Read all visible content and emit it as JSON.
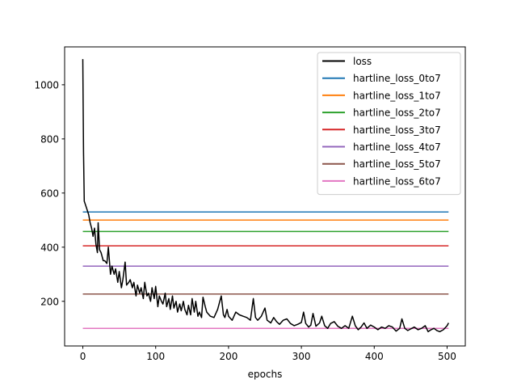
{
  "chart_data": {
    "type": "line",
    "title": "",
    "xlabel": "epochs",
    "ylabel": "",
    "xlim": [
      -25,
      525
    ],
    "ylim": [
      35,
      1140
    ],
    "xticks": [
      0,
      100,
      200,
      300,
      400,
      500
    ],
    "yticks": [
      200,
      400,
      600,
      800,
      1000
    ],
    "grid": false,
    "legend_position": "top-right",
    "loss": {
      "name": "loss",
      "color": "#000000",
      "points": [
        [
          0,
          1095
        ],
        [
          1,
          750
        ],
        [
          2,
          570
        ],
        [
          5,
          545
        ],
        [
          8,
          520
        ],
        [
          10,
          490
        ],
        [
          12,
          470
        ],
        [
          14,
          440
        ],
        [
          16,
          470
        ],
        [
          18,
          410
        ],
        [
          20,
          380
        ],
        [
          21,
          490
        ],
        [
          23,
          390
        ],
        [
          25,
          380
        ],
        [
          28,
          350
        ],
        [
          30,
          350
        ],
        [
          33,
          340
        ],
        [
          35,
          400
        ],
        [
          38,
          300
        ],
        [
          40,
          330
        ],
        [
          43,
          300
        ],
        [
          45,
          320
        ],
        [
          48,
          270
        ],
        [
          50,
          310
        ],
        [
          53,
          250
        ],
        [
          55,
          280
        ],
        [
          58,
          345
        ],
        [
          60,
          260
        ],
        [
          63,
          270
        ],
        [
          65,
          280
        ],
        [
          68,
          250
        ],
        [
          70,
          270
        ],
        [
          73,
          220
        ],
        [
          75,
          260
        ],
        [
          78,
          230
        ],
        [
          80,
          250
        ],
        [
          83,
          210
        ],
        [
          85,
          270
        ],
        [
          88,
          220
        ],
        [
          90,
          230
        ],
        [
          93,
          200
        ],
        [
          95,
          250
        ],
        [
          98,
          210
        ],
        [
          100,
          255
        ],
        [
          103,
          180
        ],
        [
          105,
          220
        ],
        [
          108,
          200
        ],
        [
          110,
          190
        ],
        [
          113,
          230
        ],
        [
          115,
          180
        ],
        [
          118,
          210
        ],
        [
          120,
          170
        ],
        [
          123,
          220
        ],
        [
          125,
          175
        ],
        [
          128,
          200
        ],
        [
          130,
          160
        ],
        [
          133,
          190
        ],
        [
          135,
          165
        ],
        [
          138,
          200
        ],
        [
          140,
          170
        ],
        [
          143,
          150
        ],
        [
          145,
          185
        ],
        [
          148,
          150
        ],
        [
          150,
          210
        ],
        [
          153,
          160
        ],
        [
          155,
          200
        ],
        [
          158,
          145
        ],
        [
          160,
          160
        ],
        [
          163,
          140
        ],
        [
          165,
          215
        ],
        [
          168,
          180
        ],
        [
          170,
          160
        ],
        [
          175,
          145
        ],
        [
          180,
          140
        ],
        [
          185,
          170
        ],
        [
          190,
          220
        ],
        [
          193,
          150
        ],
        [
          195,
          140
        ],
        [
          198,
          170
        ],
        [
          200,
          145
        ],
        [
          205,
          130
        ],
        [
          210,
          160
        ],
        [
          215,
          150
        ],
        [
          220,
          145
        ],
        [
          225,
          140
        ],
        [
          230,
          130
        ],
        [
          234,
          210
        ],
        [
          237,
          140
        ],
        [
          240,
          130
        ],
        [
          245,
          145
        ],
        [
          250,
          175
        ],
        [
          253,
          130
        ],
        [
          258,
          120
        ],
        [
          262,
          140
        ],
        [
          266,
          125
        ],
        [
          270,
          115
        ],
        [
          275,
          130
        ],
        [
          280,
          135
        ],
        [
          285,
          118
        ],
        [
          290,
          110
        ],
        [
          295,
          115
        ],
        [
          300,
          122
        ],
        [
          303,
          160
        ],
        [
          306,
          118
        ],
        [
          310,
          105
        ],
        [
          313,
          112
        ],
        [
          316,
          155
        ],
        [
          320,
          108
        ],
        [
          325,
          120
        ],
        [
          328,
          145
        ],
        [
          332,
          110
        ],
        [
          336,
          100
        ],
        [
          340,
          118
        ],
        [
          345,
          125
        ],
        [
          350,
          108
        ],
        [
          355,
          100
        ],
        [
          360,
          110
        ],
        [
          365,
          100
        ],
        [
          370,
          145
        ],
        [
          374,
          110
        ],
        [
          378,
          95
        ],
        [
          382,
          105
        ],
        [
          386,
          120
        ],
        [
          390,
          100
        ],
        [
          395,
          112
        ],
        [
          400,
          105
        ],
        [
          405,
          95
        ],
        [
          410,
          105
        ],
        [
          415,
          100
        ],
        [
          420,
          110
        ],
        [
          425,
          105
        ],
        [
          430,
          90
        ],
        [
          435,
          100
        ],
        [
          438,
          135
        ],
        [
          442,
          100
        ],
        [
          446,
          92
        ],
        [
          450,
          98
        ],
        [
          455,
          105
        ],
        [
          460,
          95
        ],
        [
          465,
          100
        ],
        [
          470,
          110
        ],
        [
          474,
          88
        ],
        [
          478,
          95
        ],
        [
          482,
          100
        ],
        [
          486,
          92
        ],
        [
          490,
          88
        ],
        [
          495,
          95
        ],
        [
          500,
          110
        ],
        [
          502,
          120
        ]
      ]
    },
    "series": [
      {
        "name": "hartline_loss_0to7",
        "color": "#1f77b4",
        "value": 530
      },
      {
        "name": "hartline_loss_1to7",
        "color": "#ff7f0e",
        "value": 500
      },
      {
        "name": "hartline_loss_2to7",
        "color": "#2ca02c",
        "value": 458
      },
      {
        "name": "hartline_loss_3to7",
        "color": "#d62728",
        "value": 405
      },
      {
        "name": "hartline_loss_4to7",
        "color": "#9467bd",
        "value": 330
      },
      {
        "name": "hartline_loss_5to7",
        "color": "#8c564b",
        "value": 227
      },
      {
        "name": "hartline_loss_6to7",
        "color": "#e377c2",
        "value": 100
      }
    ],
    "hline_x_range": [
      0,
      502
    ]
  }
}
